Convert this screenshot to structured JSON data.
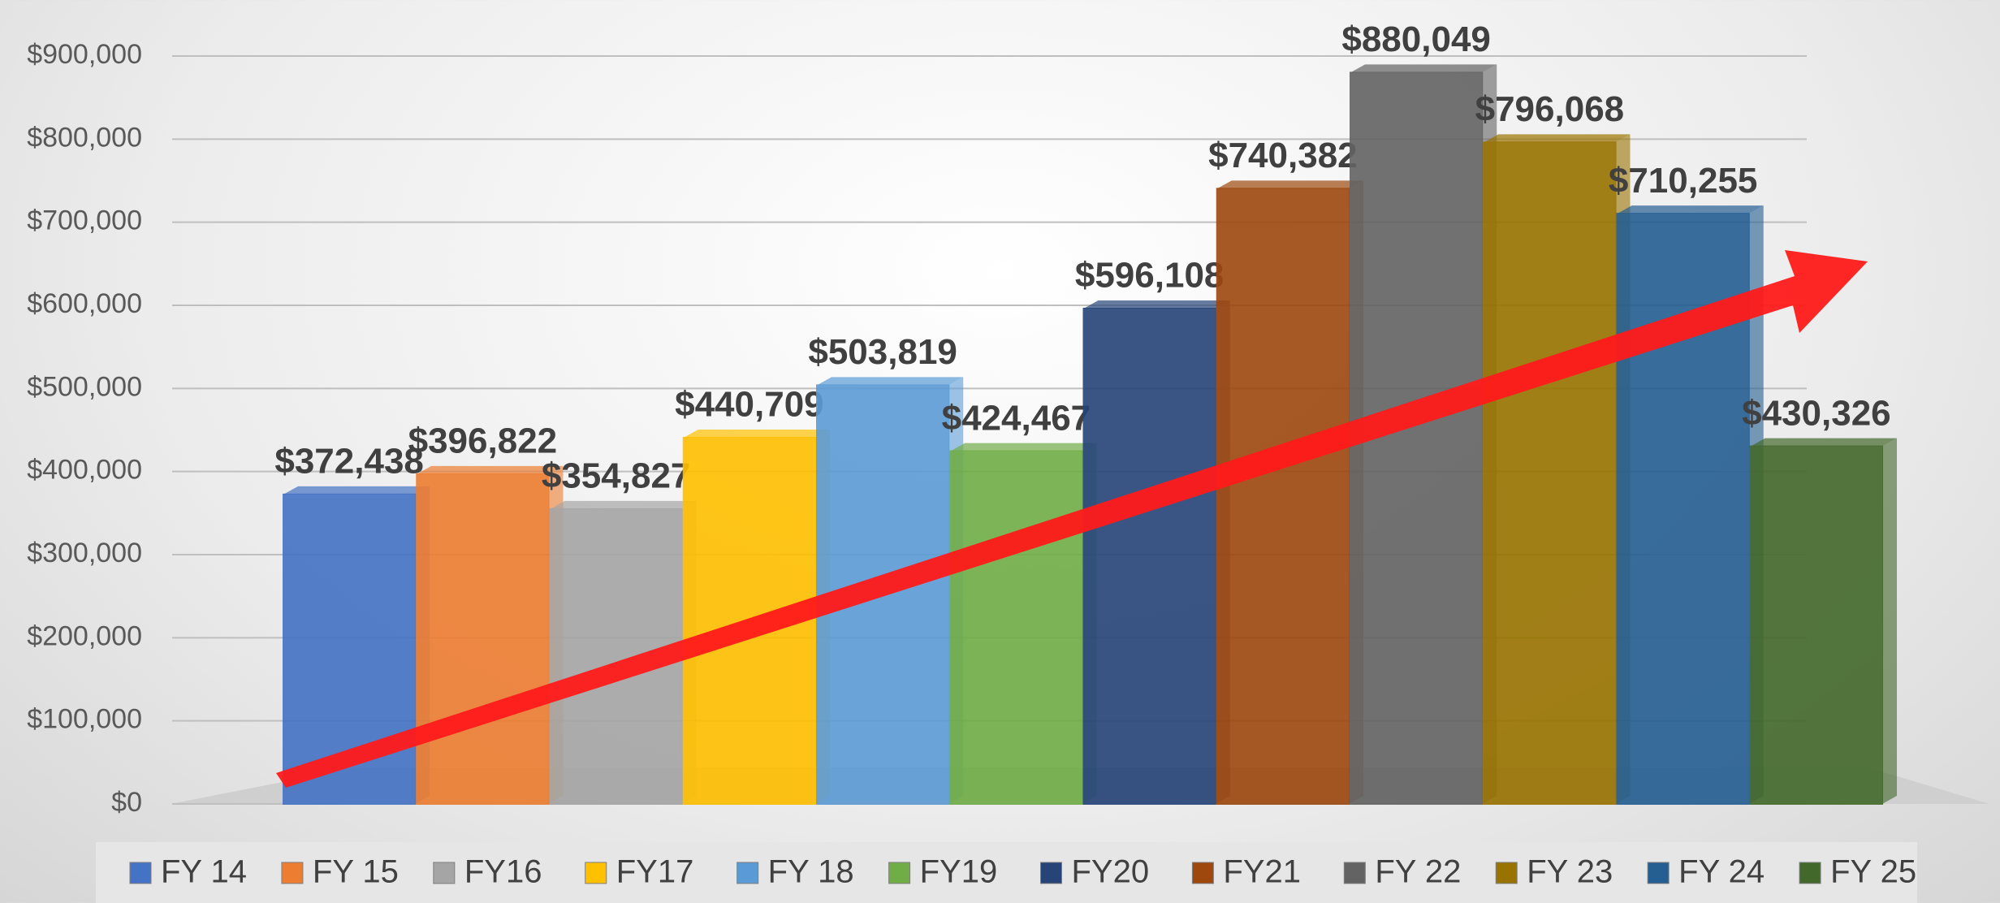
{
  "chart_data": {
    "type": "bar",
    "series": [
      {
        "name": "FY 14",
        "color": "#4472c4",
        "values": [
          372438
        ],
        "value_labels": [
          "$372,438"
        ]
      },
      {
        "name": "FY 15",
        "color": "#ed7d31",
        "values": [
          396822
        ],
        "value_labels": [
          "$396,822"
        ]
      },
      {
        "name": "FY16",
        "color": "#a5a5a5",
        "values": [
          354827
        ],
        "value_labels": [
          "$354,827"
        ]
      },
      {
        "name": "FY17",
        "color": "#ffc000",
        "values": [
          440709
        ],
        "value_labels": [
          "$440,709"
        ]
      },
      {
        "name": "FY 18",
        "color": "#5b9bd5",
        "values": [
          503819
        ],
        "value_labels": [
          "$503,819"
        ]
      },
      {
        "name": "FY19",
        "color": "#70ad47",
        "values": [
          424467
        ],
        "value_labels": [
          "$424,467"
        ]
      },
      {
        "name": "FY20",
        "color": "#264478",
        "values": [
          596108
        ],
        "value_labels": [
          "$596,108"
        ]
      },
      {
        "name": "FY21",
        "color": "#9e480e",
        "values": [
          740382
        ],
        "value_labels": [
          "$740,382"
        ]
      },
      {
        "name": "FY 22",
        "color": "#636363",
        "values": [
          880049
        ],
        "value_labels": [
          "$880,049"
        ]
      },
      {
        "name": "FY 23",
        "color": "#997300",
        "values": [
          796068
        ],
        "value_labels": [
          "$796,068"
        ]
      },
      {
        "name": "FY 24",
        "color": "#255e91",
        "values": [
          710255
        ],
        "value_labels": [
          "$710,255"
        ]
      },
      {
        "name": "FY 25",
        "color": "#43682b",
        "values": [
          430326
        ],
        "value_labels": [
          "$430,326"
        ]
      }
    ],
    "ylim": [
      0,
      900000
    ],
    "yticks": [
      {
        "value": 0,
        "label": "$0"
      },
      {
        "value": 100000,
        "label": "$100,000"
      },
      {
        "value": 200000,
        "label": "$200,000"
      },
      {
        "value": 300000,
        "label": "$300,000"
      },
      {
        "value": 400000,
        "label": "$400,000"
      },
      {
        "value": 500000,
        "label": "$500,000"
      },
      {
        "value": 600000,
        "label": "$600,000"
      },
      {
        "value": 700000,
        "label": "$700,000"
      },
      {
        "value": 800000,
        "label": "$800,000"
      },
      {
        "value": 900000,
        "label": "$900,000"
      }
    ],
    "grid": true,
    "legend": "bottom"
  }
}
